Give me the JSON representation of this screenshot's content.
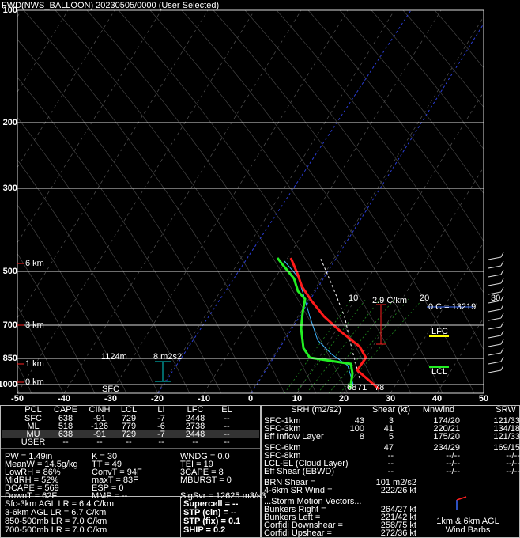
{
  "title": "FWD(NWS_BALLOON)  20230505/0000  (User Selected)",
  "skewt": {
    "pressure_labels": [
      "100",
      "200",
      "300",
      "500",
      "700",
      "850",
      "1000"
    ],
    "temperature_labels": [
      "-50",
      "-40",
      "-30",
      "-20",
      "-10",
      "0",
      "10",
      "20",
      "30",
      "40",
      "50"
    ],
    "height_labels": [
      "6 km",
      "3 km",
      "1 km",
      "0 km"
    ],
    "annotations": {
      "sfc": "SFC",
      "eff_inflow_top": "1124m",
      "eff_srh": "8 m2s2",
      "lapse_rate": "2.9 C/km",
      "freezing_level": "0 C = 13219'",
      "lfc": "LFC",
      "lcl": "LCL",
      "mixing_ratios": [
        "10",
        "20",
        "30"
      ],
      "sfc_dewpoint": "68",
      "sfc_wetbulb": "71",
      "sfc_temperature": "78"
    }
  },
  "parcel_table": {
    "headers": [
      "PCL",
      "CAPE",
      "CINH",
      "LCL",
      "LI",
      "LFC",
      "EL"
    ],
    "rows": [
      [
        "SFC",
        "638",
        "-91",
        "729",
        "-7",
        "2448",
        "--"
      ],
      [
        "ML",
        "518",
        "-126",
        "779",
        "-6",
        "2738",
        "--"
      ],
      [
        "MU",
        "638",
        "-91",
        "729",
        "-7",
        "2448",
        "--"
      ],
      [
        "USER",
        "--",
        "--",
        "--",
        "--",
        "--",
        "--"
      ]
    ]
  },
  "indices": [
    [
      "PW = 1.49in",
      "K = 30",
      "WNDG = 0.0"
    ],
    [
      "MeanW = 14.5g/kg",
      "TT = 49",
      "TEI = 19"
    ],
    [
      "LowRH = 86%",
      "ConvT = 94F",
      "3CAPE = 8"
    ],
    [
      "MidRH = 52%",
      "maxT = 83F",
      "MBURST = 0"
    ],
    [
      "DCAPE = 569",
      "ESP = 0"
    ],
    [
      "DownT = 62F",
      "MMP = --",
      "SigSvr = 12625 m3/s3"
    ]
  ],
  "lapse_rates": [
    "Sfc-3km AGL LR = 6.4 C/km",
    "3-6km AGL LR = 6.7 C/km",
    "850-500mb LR = 7.0 C/km",
    "700-500mb LR = 7.0 C/km"
  ],
  "composites": [
    {
      "text": "Supercell = --",
      "color": "#ffff00"
    },
    {
      "text": "STP (cin) = --",
      "color": "#ffff00"
    },
    {
      "text": "STP (fix) = 0.1",
      "color": "#8b6914"
    },
    {
      "text": "SHIP = 0.2",
      "color": "#8b6914"
    }
  ],
  "kinematics": {
    "headers": [
      "SRH (m2/s2)",
      "Shear (kt)",
      "MnWind",
      "SRW"
    ],
    "rows": [
      [
        "SFC-1km",
        "43",
        "3",
        "174/20",
        "121/33"
      ],
      [
        "SFC-3km",
        "100",
        "41",
        "220/21",
        "134/18"
      ],
      [
        "Eff Inflow Layer",
        "8",
        "5",
        "175/20",
        "121/33"
      ],
      [
        "SFC-6km",
        null,
        "47",
        "234/29",
        "169/15"
      ],
      [
        "SFC-8km",
        null,
        "--",
        "--/--",
        "--/--"
      ],
      [
        "LCL-EL (Cloud Layer)",
        null,
        "--",
        "--/--",
        "--/--"
      ],
      [
        "Eff Shear (EBWD)",
        null,
        "--",
        "--/--",
        "--/--"
      ]
    ]
  },
  "brn": [
    [
      "BRN Shear =",
      "101 m2/s2"
    ],
    [
      "4-6km SR Wind =",
      "222/26 kt"
    ]
  ],
  "storm_motion": {
    "title": "...Storm Motion Vectors...",
    "rows": [
      {
        "label": "Bunkers Right =",
        "value": "264/27 kt",
        "color": "#3a8cff"
      },
      {
        "label": "Bunkers Left =",
        "value": "221/42 kt",
        "color": "#ff2020"
      },
      {
        "label": "Corfidi Downshear =",
        "value": "258/75 kt",
        "color": "#ffffff"
      },
      {
        "label": "Corfidi Upshear =",
        "value": "272/36 kt",
        "color": "#ffffff"
      }
    ]
  },
  "hodograph_label": [
    "1km & 6km AGL",
    "Wind Barbs"
  ]
}
